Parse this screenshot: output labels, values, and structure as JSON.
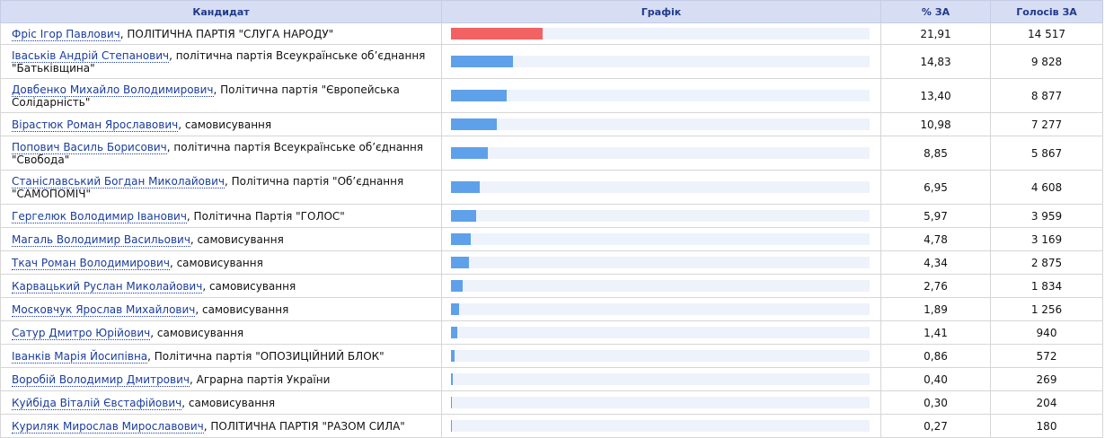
{
  "headers": {
    "candidate": "Кандидат",
    "graph": "Графік",
    "percent": "% ЗА",
    "votes": "Голосів ЗА"
  },
  "colors": {
    "leader_bar": "#f26262",
    "bar": "#5fa0ea",
    "track": "#eef2fb",
    "header_bg": "#d7def3"
  },
  "rows": [
    {
      "name": "Фріс Ігор Павлович",
      "party": ", ПОЛІТИЧНА ПАРТІЯ \"СЛУГА НАРОДУ\"",
      "percent": "21,91",
      "votes": "14 517",
      "share": 21.91
    },
    {
      "name": "Іваськів Андрій Степанович",
      "party": ", політична партія Всеукраїнське об’єднання \"Батьківщина\"",
      "percent": "14,83",
      "votes": "9 828",
      "share": 14.83
    },
    {
      "name": "Довбенко Михайло Володимирович",
      "party": ", Політична партія \"Європейська Солідарність\"",
      "percent": "13,40",
      "votes": "8 877",
      "share": 13.4
    },
    {
      "name": "Вірастюк Роман Ярославович",
      "party": ", самовисування",
      "percent": "10,98",
      "votes": "7 277",
      "share": 10.98
    },
    {
      "name": "Попович Василь Борисович",
      "party": ", політична партія Всеукраїнське об’єднання \"Свобода\"",
      "percent": "8,85",
      "votes": "5 867",
      "share": 8.85
    },
    {
      "name": "Станіславський Богдан Миколайович",
      "party": ", Політична партія \"Об’єднання \"САМОПОМІЧ\"",
      "percent": "6,95",
      "votes": "4 608",
      "share": 6.95
    },
    {
      "name": "Гергелюк Володимир Іванович",
      "party": ", Політична Партія \"ГОЛОС\"",
      "percent": "5,97",
      "votes": "3 959",
      "share": 5.97
    },
    {
      "name": "Магаль Володимир Васильович",
      "party": ", самовисування",
      "percent": "4,78",
      "votes": "3 169",
      "share": 4.78
    },
    {
      "name": "Ткач Роман Володимирович",
      "party": ", самовисування",
      "percent": "4,34",
      "votes": "2 875",
      "share": 4.34
    },
    {
      "name": "Карвацький Руслан Миколайович",
      "party": ", самовисування",
      "percent": "2,76",
      "votes": "1 834",
      "share": 2.76
    },
    {
      "name": "Московчук Ярослав Михайлович",
      "party": ", самовисування",
      "percent": "1,89",
      "votes": "1 256",
      "share": 1.89
    },
    {
      "name": "Сатур Дмитро Юрійович",
      "party": ", самовисування",
      "percent": "1,41",
      "votes": "940",
      "share": 1.41
    },
    {
      "name": "Іванків Марія Йосипівна",
      "party": ", Політична партія \"ОПОЗИЦІЙНИЙ БЛОК\"",
      "percent": "0,86",
      "votes": "572",
      "share": 0.86
    },
    {
      "name": "Воробій Володимир Дмитрович",
      "party": ", Аграрна партія України",
      "percent": "0,40",
      "votes": "269",
      "share": 0.4
    },
    {
      "name": "Куйбіда Віталій Євстафійович",
      "party": ", самовисування",
      "percent": "0,30",
      "votes": "204",
      "share": 0.3
    },
    {
      "name": "Куриляк Мирослав Мирославович",
      "party": ", ПОЛІТИЧНА ПАРТІЯ \"РАЗОМ СИЛА\"",
      "percent": "0,27",
      "votes": "180",
      "share": 0.27
    }
  ]
}
